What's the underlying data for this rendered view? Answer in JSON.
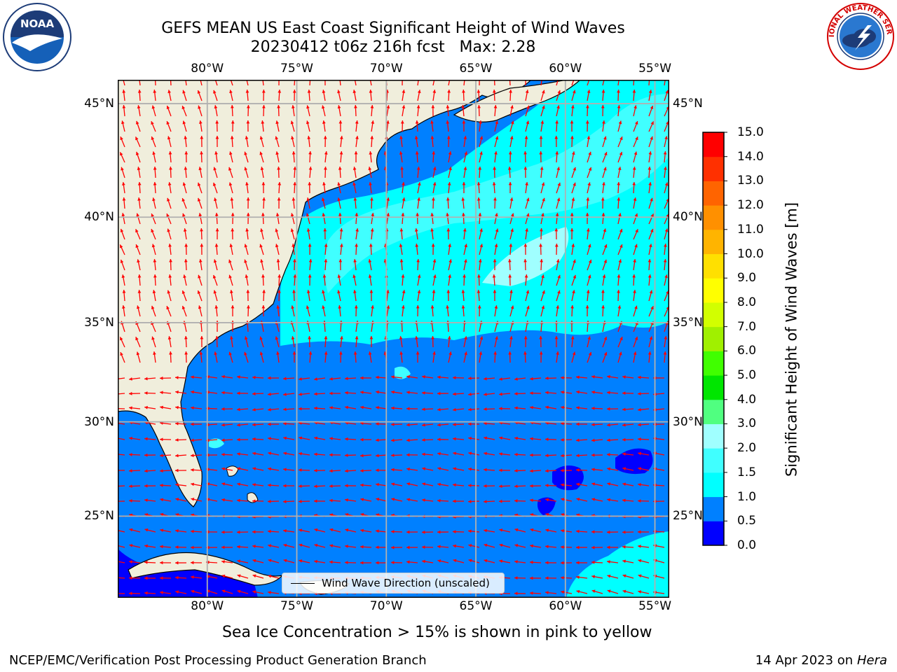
{
  "title": {
    "line1": "GEFS MEAN US East Coast Significant Height of Wind Waves",
    "line2": "20230412 t06z 216h fcst   Max: 2.28"
  },
  "logos": {
    "left_text": "NOAA",
    "right_text": "NATIONAL WEATHER SERVICE",
    "left_icon": "noaa-logo",
    "right_icon": "nws-logo"
  },
  "map": {
    "lon_labels": [
      "80°W",
      "75°W",
      "70°W",
      "65°W",
      "60°W",
      "55°W"
    ],
    "lat_labels": [
      "45°N",
      "40°N",
      "35°N",
      "30°N",
      "25°N"
    ],
    "lon_range": [
      -85,
      -54.2
    ],
    "lat_range": [
      20.5,
      46
    ],
    "colors": {
      "land": "#f0eedc",
      "coast": "#000000",
      "grid": "#b0b0b0",
      "arrow": "#ff0000"
    }
  },
  "legend": {
    "label": "Wind Wave Direction (unscaled)"
  },
  "colorbar": {
    "label": "Significant Height of Wind Waves [m]",
    "ticks": [
      "0.0",
      "0.5",
      "1.0",
      "1.5",
      "2.0",
      "3.0",
      "4.0",
      "5.0",
      "6.0",
      "7.0",
      "8.0",
      "9.0",
      "10.0",
      "11.0",
      "12.0",
      "13.0",
      "14.0",
      "15.0"
    ],
    "colors": [
      "#0000ff",
      "#0080ff",
      "#00ffff",
      "#40ffff",
      "#a0ffff",
      "#50ff80",
      "#00e600",
      "#40ff00",
      "#a0f000",
      "#d2ff00",
      "#ffff00",
      "#ffe000",
      "#ffb400",
      "#ff9000",
      "#ff6400",
      "#ff3000",
      "#ff0000"
    ]
  },
  "subnote": "Sea Ice Concentration > 15% is shown in pink to yellow",
  "footer": {
    "left": "NCEP/EMC/Verification Post Processing Product Generation Branch",
    "right_prefix": "14 Apr 2023 on ",
    "right_host": "Hera"
  }
}
